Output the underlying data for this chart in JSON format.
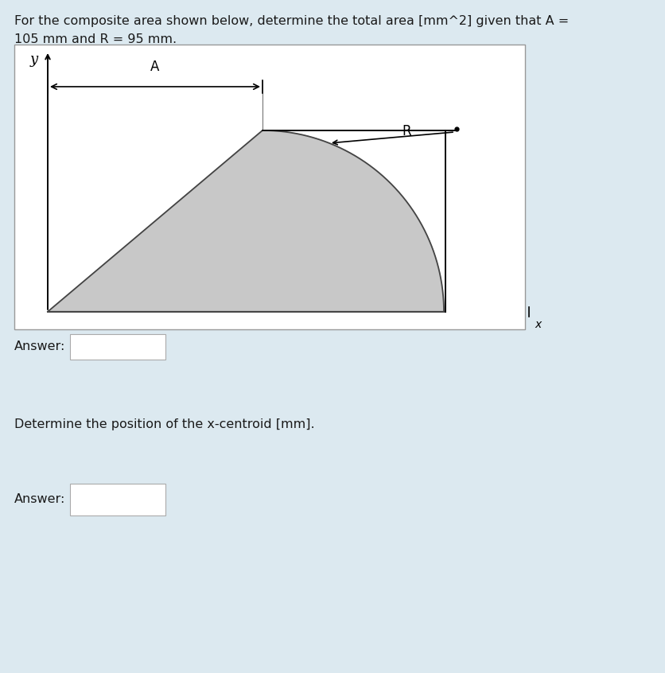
{
  "page_bg": "#dce9f0",
  "diagram_bg": "#ffffff",
  "text_color_dark": "#1a1a1a",
  "title_line1": "For the composite area shown below, determine the total area [mm^2] given that A =",
  "title_line2": "105 mm and R = 95 mm.",
  "question2": "Determine the position of the x-centroid [mm].",
  "answer_label": "Answer:",
  "shape_fill": "#c8c8c8",
  "shape_edge": "#444444",
  "label_A": "A",
  "label_R": "R",
  "label_y": "y",
  "label_x": "x",
  "fig_width": 8.37,
  "fig_height": 8.46,
  "divider_color": "#ffffff",
  "box_edge_color": "#bbbbbb",
  "answer_box_color": "#ffffff"
}
